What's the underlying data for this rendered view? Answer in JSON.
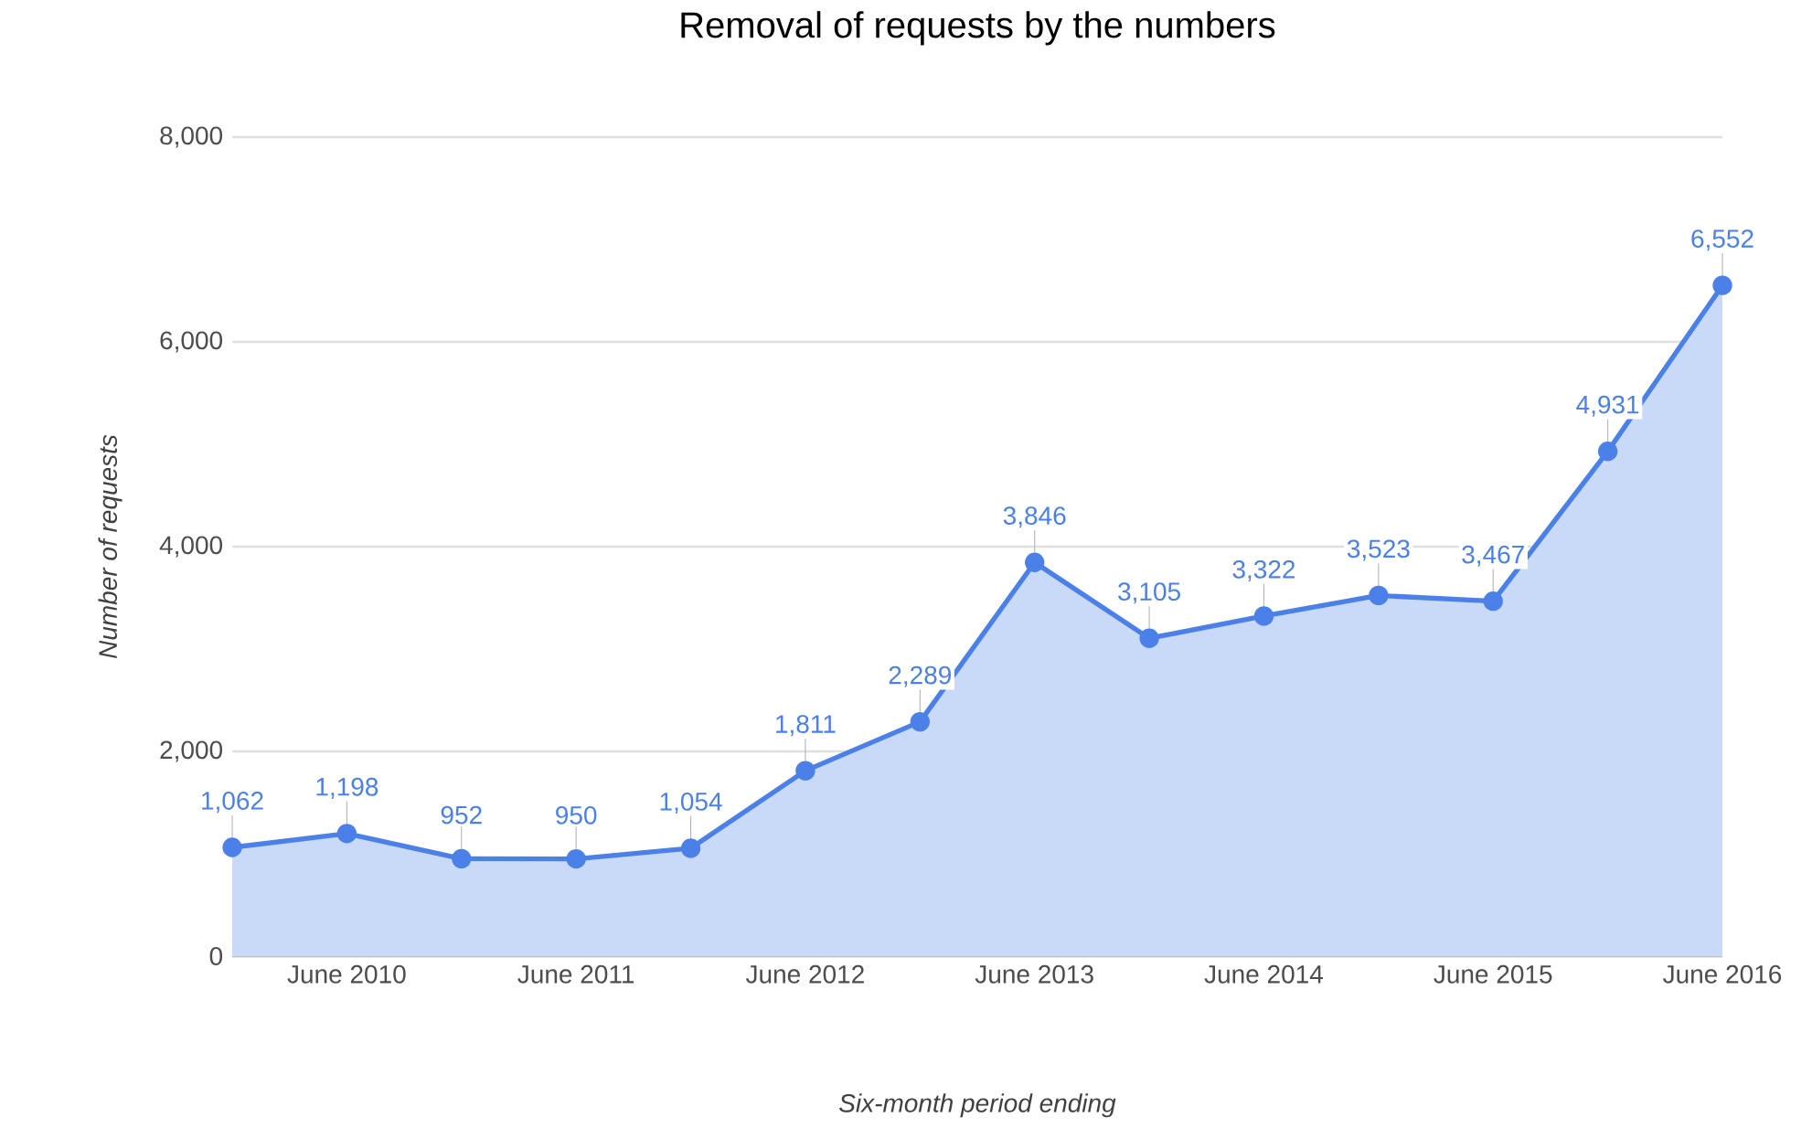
{
  "chart_data": {
    "type": "area",
    "title": "Removal of requests by the numbers",
    "xlabel": "Six-month period ending",
    "ylabel": "Number of requests",
    "categories": [
      null,
      "June 2010",
      null,
      "June 2011",
      null,
      "June 2012",
      null,
      "June 2013",
      null,
      "June 2014",
      null,
      "June 2015",
      null,
      "June 2016"
    ],
    "series": [
      {
        "color": "#4a80e8",
        "values": [
          1062,
          1198,
          952,
          950,
          1054,
          1811,
          2289,
          3846,
          3105,
          3322,
          3523,
          3467,
          4931,
          6552
        ],
        "value_labels": [
          "1,062",
          "1,198",
          "952",
          "950",
          "1,054",
          "1,811",
          "2,289",
          "3,846",
          "3,105",
          "3,322",
          "3,523",
          "3,467",
          "4,931",
          "6,552"
        ]
      }
    ],
    "ylim": [
      0,
      8000
    ],
    "yticks": [
      {
        "value": 0,
        "label": "0"
      },
      {
        "value": 2000,
        "label": "2,000"
      },
      {
        "value": 4000,
        "label": "4,000"
      },
      {
        "value": 6000,
        "label": "6,000"
      },
      {
        "value": 8000,
        "label": "8,000"
      }
    ],
    "grid": "y",
    "marker": "circle"
  }
}
